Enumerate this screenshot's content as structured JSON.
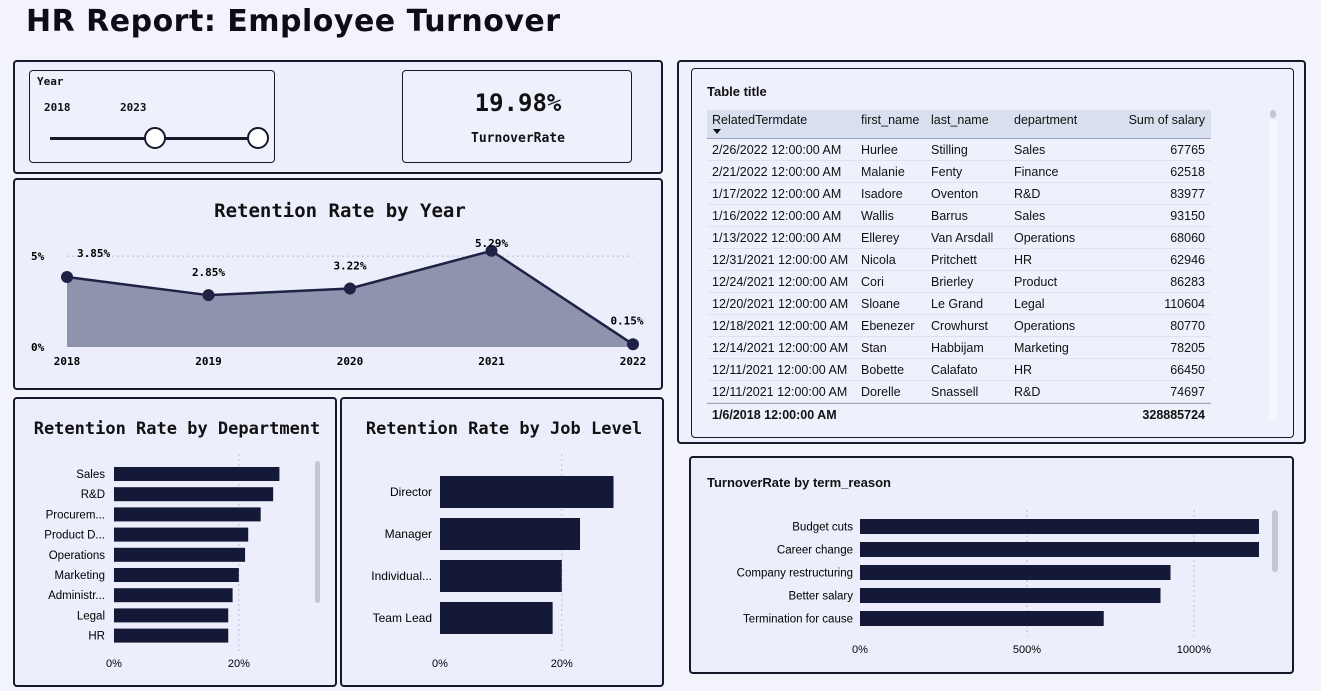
{
  "title": "HR Report: Employee Turnover",
  "slicer": {
    "label": "Year",
    "start": "2018",
    "end": "2023"
  },
  "kpi": {
    "value": "19.98%",
    "label": "TurnoverRate"
  },
  "retention_year": {
    "title": "Retention Rate by Year",
    "y_ticks": [
      "5%",
      "0%"
    ],
    "data_labels": [
      "3.85%",
      "2.85%",
      "3.22%",
      "5.29%",
      "0.15%"
    ]
  },
  "retention_dept": {
    "title": "Retention Rate by Department",
    "x_ticks": [
      "0%",
      "20%"
    ]
  },
  "retention_job": {
    "title": "Retention Rate by Job Level",
    "x_ticks": [
      "0%",
      "20%"
    ]
  },
  "turnover_reason": {
    "title": "TurnoverRate by term_reason",
    "x_ticks": [
      "0%",
      "500%",
      "1000%"
    ]
  },
  "table": {
    "title": "Table title",
    "columns": [
      "RelatedTermdate",
      "first_name",
      "last_name",
      "department",
      "Sum of salary"
    ],
    "rows": [
      [
        "2/26/2022 12:00:00 AM",
        "Hurlee",
        "Stilling",
        "Sales",
        "67765"
      ],
      [
        "2/21/2022 12:00:00 AM",
        "Malanie",
        "Fenty",
        "Finance",
        "62518"
      ],
      [
        "1/17/2022 12:00:00 AM",
        "Isadore",
        "Oventon",
        "R&D",
        "83977"
      ],
      [
        "1/16/2022 12:00:00 AM",
        "Wallis",
        "Barrus",
        "Sales",
        "93150"
      ],
      [
        "1/13/2022 12:00:00 AM",
        "Ellerey",
        "Van Arsdall",
        "Operations",
        "68060"
      ],
      [
        "12/31/2021 12:00:00 AM",
        "Nicola",
        "Pritchett",
        "HR",
        "62946"
      ],
      [
        "12/24/2021 12:00:00 AM",
        "Cori",
        "Brierley",
        "Product",
        "86283"
      ],
      [
        "12/20/2021 12:00:00 AM",
        "Sloane",
        "Le Grand",
        "Legal",
        "110604"
      ],
      [
        "12/18/2021 12:00:00 AM",
        "Ebenezer",
        "Crowhurst",
        "Operations",
        "80770"
      ],
      [
        "12/14/2021 12:00:00 AM",
        "Stan",
        "Habbijam",
        "Marketing",
        "78205"
      ],
      [
        "12/11/2021 12:00:00 AM",
        "Bobette",
        "Calafato",
        "HR",
        "66450"
      ],
      [
        "12/11/2021 12:00:00 AM",
        "Dorelle",
        "Snassell",
        "R&D",
        "74697"
      ]
    ],
    "total": {
      "date": "1/6/2018 12:00:00 AM",
      "salary": "328885724"
    }
  },
  "chart_data": [
    {
      "type": "area",
      "title": "Retention Rate by Year",
      "x": [
        "2018",
        "2019",
        "2020",
        "2021",
        "2022"
      ],
      "values": [
        3.85,
        2.85,
        3.22,
        5.29,
        0.15
      ],
      "ylim": [
        0,
        5.5
      ],
      "grid": true,
      "color": "#1f2244"
    },
    {
      "type": "bar",
      "title": "Retention Rate by Department",
      "categories": [
        "Sales",
        "R&D",
        "Procurem...",
        "Product D...",
        "Operations",
        "Marketing",
        "Administr...",
        "Legal",
        "HR"
      ],
      "values": [
        26.5,
        25.5,
        23.5,
        21.5,
        21,
        20,
        19,
        18.3,
        18.3
      ],
      "xlim": [
        0,
        33
      ],
      "color": "#141938"
    },
    {
      "type": "bar",
      "title": "Retention Rate by Job Level",
      "categories": [
        "Director",
        "Manager",
        "Individual...",
        "Team Lead"
      ],
      "values": [
        28.5,
        23,
        20,
        18.5
      ],
      "xlim": [
        0,
        34
      ],
      "color": "#141938"
    },
    {
      "type": "bar",
      "title": "TurnoverRate by term_reason",
      "categories": [
        "Budget cuts",
        "Career change",
        "Company restructuring",
        "Better salary",
        "Termination for cause"
      ],
      "values": [
        1195,
        1195,
        930,
        900,
        730
      ],
      "xlim": [
        0,
        1210
      ],
      "color": "#141938"
    }
  ]
}
